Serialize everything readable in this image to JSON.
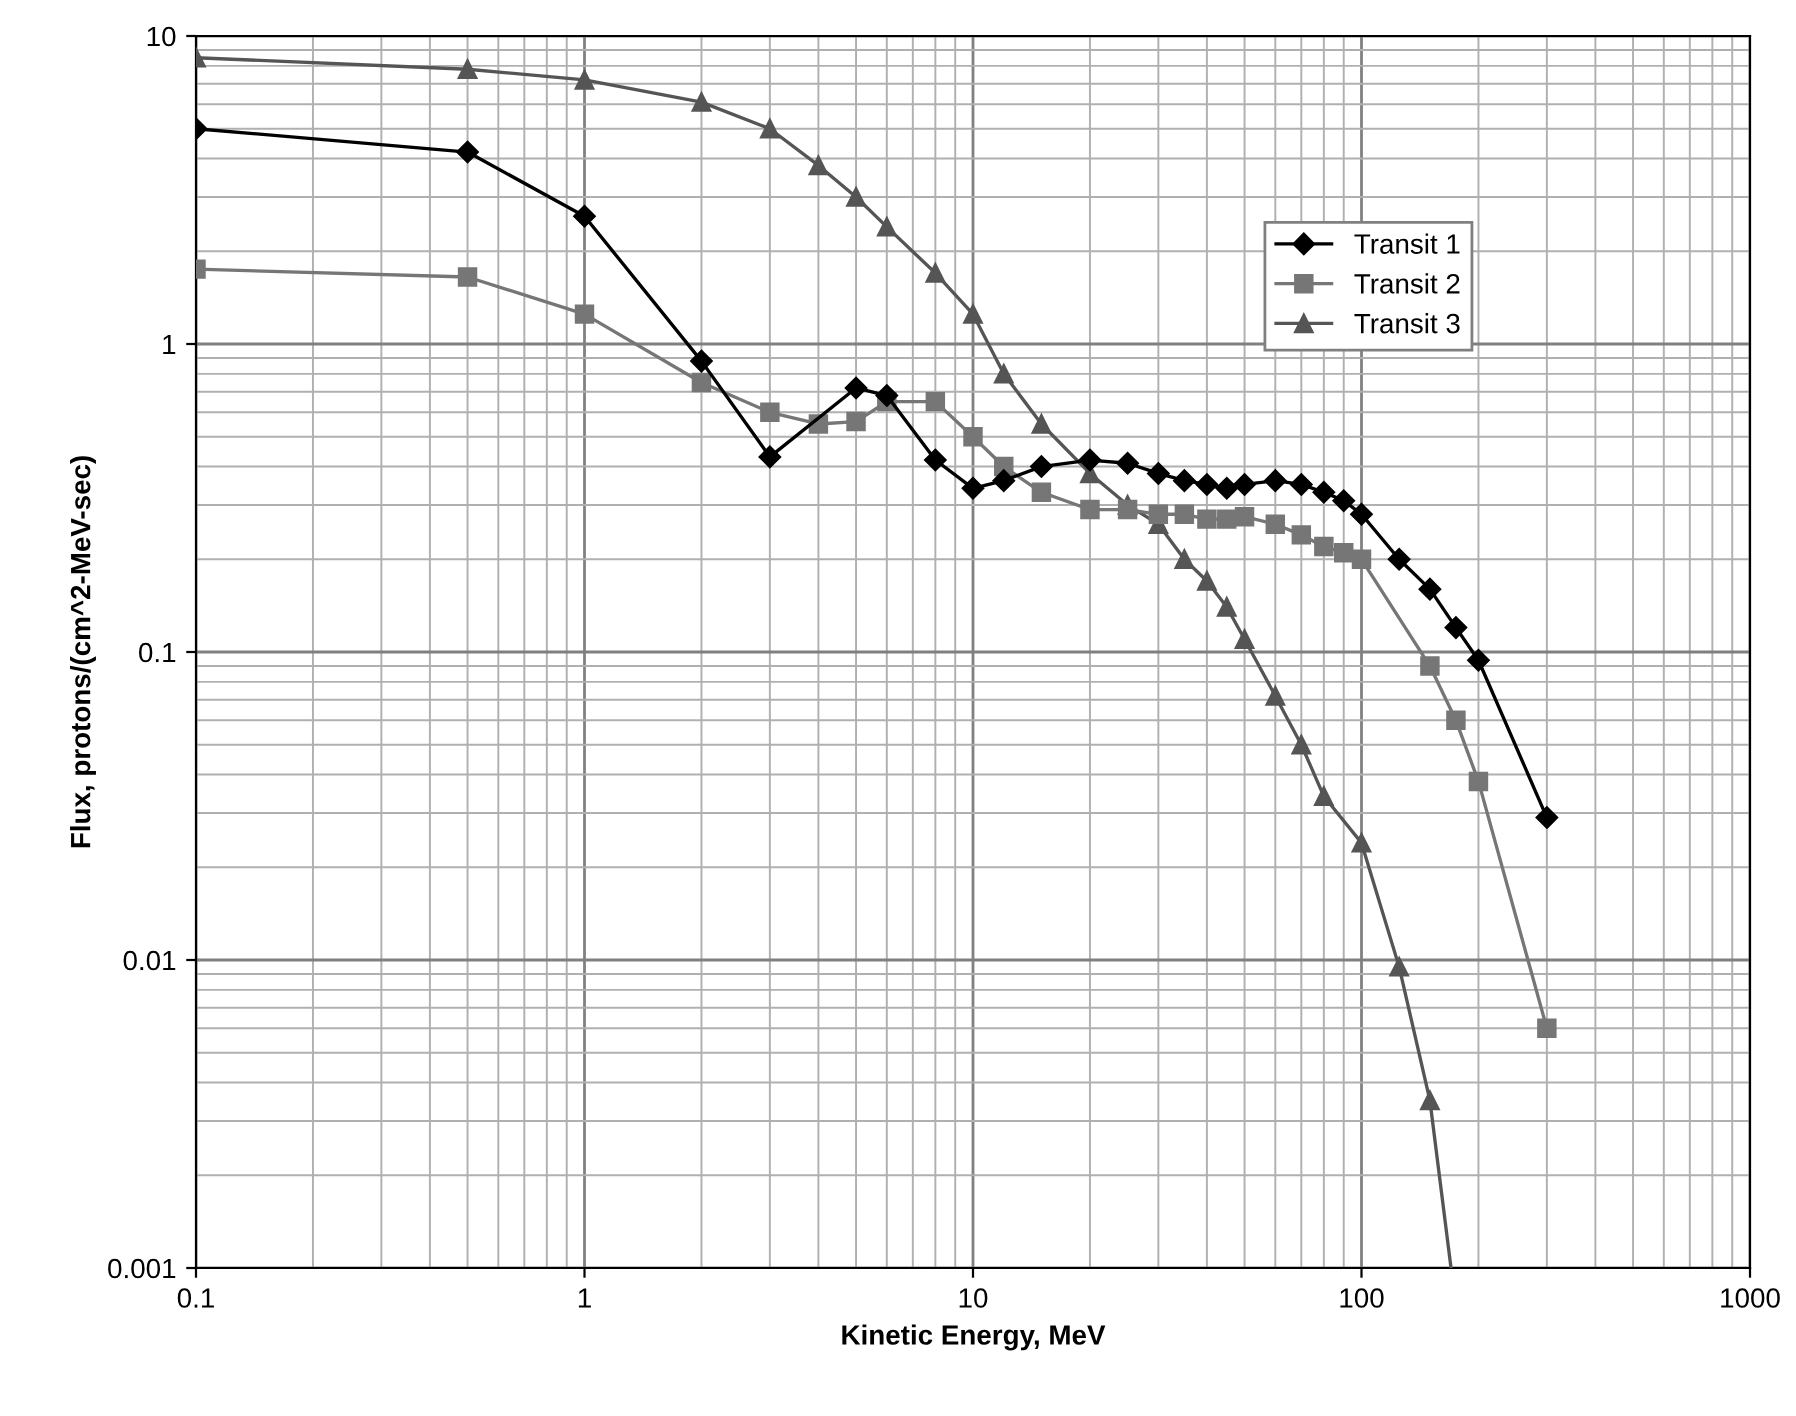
{
  "chart_data": {
    "type": "line",
    "xlabel": "Kinetic Energy, MeV",
    "ylabel": "Flux, protons/(cm^2-MeV-sec)",
    "log": "xy",
    "grid": true,
    "legend": "top right",
    "xlim": [
      0.1,
      1000
    ],
    "xticks": [
      0.1,
      1,
      10,
      100,
      1000
    ],
    "ylim": [
      0.001,
      10
    ],
    "yticks": [
      0.001,
      0.01,
      0.1,
      1,
      10
    ],
    "series": [
      {
        "name": "Transit 1",
        "color": "#000000",
        "marker": "diamond",
        "x": [
          0.1,
          0.5,
          1,
          2,
          3,
          5,
          6,
          8,
          10,
          12,
          15,
          20,
          25,
          30,
          35,
          40,
          45,
          50,
          60,
          70,
          80,
          90,
          100,
          125,
          150,
          175,
          200,
          300
        ],
        "values": [
          5,
          4.2,
          2.6,
          0.88,
          0.43,
          0.72,
          0.68,
          0.42,
          0.34,
          0.36,
          0.4,
          0.42,
          0.41,
          0.38,
          0.36,
          0.35,
          0.34,
          0.35,
          0.36,
          0.35,
          0.33,
          0.31,
          0.28,
          0.2,
          0.16,
          0.12,
          0.094,
          0.029
        ]
      },
      {
        "name": "Transit 2",
        "color": "#767676",
        "marker": "square",
        "x": [
          0.1,
          0.5,
          1,
          2,
          3,
          4,
          5,
          6,
          8,
          10,
          12,
          15,
          20,
          25,
          30,
          35,
          40,
          45,
          50,
          60,
          70,
          80,
          90,
          100,
          150,
          175,
          200,
          300
        ],
        "values": [
          1.75,
          1.65,
          1.25,
          0.75,
          0.6,
          0.55,
          0.56,
          0.65,
          0.65,
          0.5,
          0.4,
          0.33,
          0.29,
          0.29,
          0.28,
          0.28,
          0.27,
          0.27,
          0.275,
          0.26,
          0.24,
          0.22,
          0.21,
          0.2,
          0.09,
          0.06,
          0.038,
          0.006
        ]
      },
      {
        "name": "Transit 3",
        "color": "#555555",
        "marker": "triangle",
        "x": [
          0.1,
          0.5,
          1,
          2,
          3,
          4,
          5,
          6,
          8,
          10,
          12,
          15,
          20,
          25,
          30,
          35,
          40,
          45,
          50,
          60,
          70,
          80,
          100,
          125,
          150,
          170
        ],
        "values": [
          8.5,
          7.8,
          7.2,
          6.1,
          5,
          3.8,
          3.0,
          2.4,
          1.7,
          1.25,
          0.8,
          0.55,
          0.38,
          0.3,
          0.26,
          0.2,
          0.17,
          0.14,
          0.11,
          0.072,
          0.05,
          0.034,
          0.024,
          0.0095,
          0.0035,
          0.001
        ]
      }
    ]
  }
}
